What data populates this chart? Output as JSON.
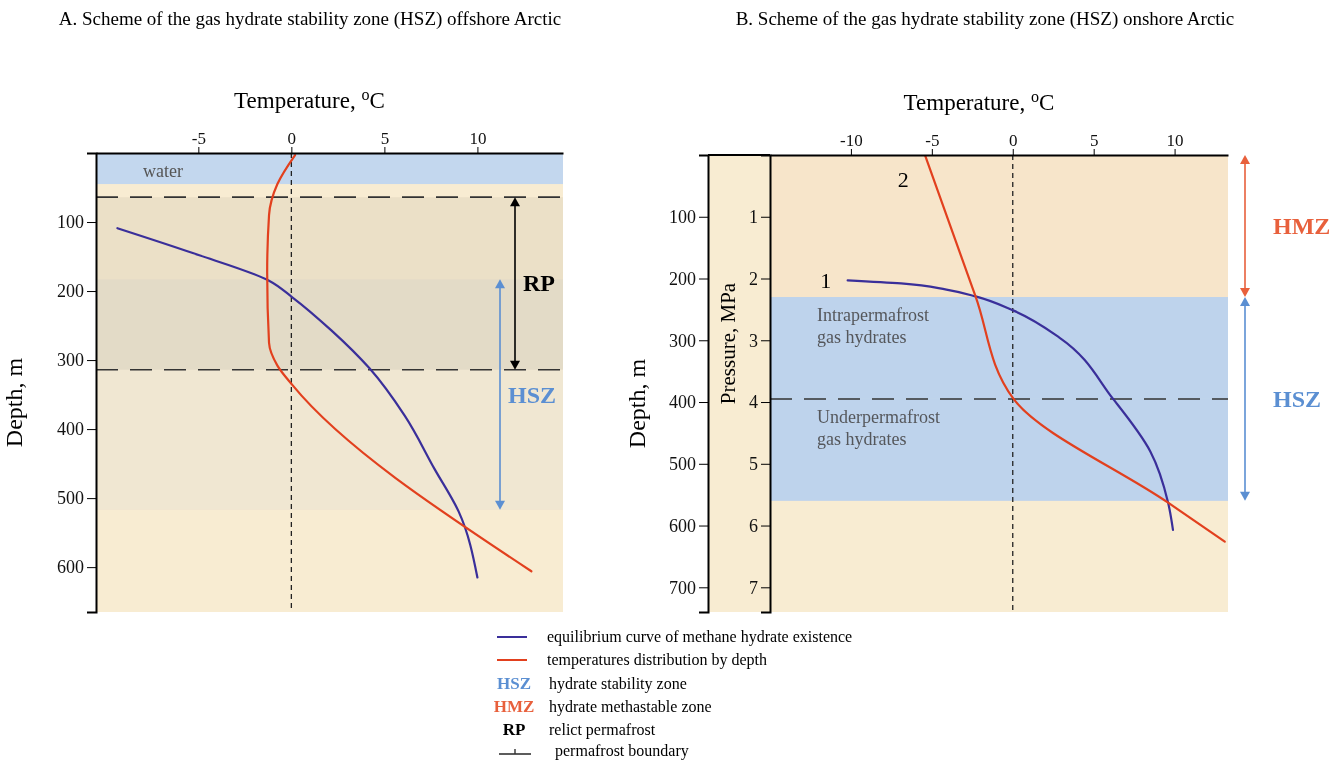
{
  "chart_data": [
    {
      "type": "line",
      "title": "A. Scheme of the gas hydrate stability zone (HSZ) offshore Arctic",
      "xlabel": "Temperature, $^{o}$C",
      "ylabel": "Depth, m",
      "xlim": [
        -10.5,
        14.6
      ],
      "xticks": [
        -5,
        0,
        5,
        10
      ],
      "ylim": [
        665,
        0
      ],
      "yticks": [
        100,
        200,
        300,
        400,
        500,
        600
      ],
      "series": [
        {
          "name": "equilibrium curve of methane hydrate existence",
          "color": "#3a2f9a",
          "x": [
            -9.35,
            -5.3,
            -1.2,
            0.05,
            2.15,
            4.2,
            6.1,
            7.7,
            9.0,
            10.0
          ],
          "values": [
            109,
            145,
            185,
            209,
            257,
            312,
            381,
            458,
            520,
            615
          ]
        },
        {
          "name": "temperatures distribution by depth",
          "color": "#e2401e",
          "x": [
            0.2,
            -0.75,
            -1.2,
            -1.3,
            -1.2,
            -0.75,
            0.05,
            12.9
          ],
          "values": [
            3,
            45,
            90,
            173,
            275,
            308,
            336,
            606
          ]
        }
      ],
      "bands": [
        {
          "axis": "y",
          "from": 0,
          "to": 45,
          "label": "water"
        },
        {
          "axis": "y",
          "from": 183,
          "to": 517,
          "label": "HSZ",
          "color": "#5b8fd2"
        },
        {
          "axis": "y",
          "from": 64,
          "to": 314,
          "label": "RP",
          "color": "#000000"
        }
      ],
      "ref_lines": [
        {
          "axis": "y",
          "value": 64,
          "line_style": "dashed",
          "label": "permafrost boundary"
        },
        {
          "axis": "y",
          "value": 314,
          "line_style": "dashed"
        },
        {
          "axis": "x",
          "value": 0,
          "line_style": "dashed"
        }
      ],
      "legend": "bottom",
      "annotations": [
        "HSZ hydrate stability zone",
        "HMZ hydrate methastable zone",
        "RP relict permafrost"
      ]
    },
    {
      "type": "line",
      "title": "B. Scheme of the gas hydrate stability zone (HSZ) onshore Arctic",
      "xlabel": "Temperature, $^{o}$C",
      "ylabel": "Depth, m",
      "y2label": "Pressure, MPa",
      "xlim": [
        -15,
        13.3
      ],
      "xticks": [
        -10,
        -5,
        0,
        5,
        10
      ],
      "ylim": [
        740,
        0
      ],
      "yticks": [
        100,
        200,
        300,
        400,
        500,
        600,
        700
      ],
      "y2lim": [
        7.4,
        0
      ],
      "y2ticks": [
        1,
        2,
        3,
        4,
        5,
        6,
        7
      ],
      "series": [
        {
          "name": "1",
          "color": "#3a2f9a",
          "x": [
            -10.2,
            -6.9,
            -4.1,
            -2.3,
            0.05,
            2.9,
            6.2,
            8.5,
            9.6,
            9.9
          ],
          "values": [
            203,
            208,
            218,
            229,
            252,
            296,
            395,
            480,
            563,
            607
          ]
        },
        {
          "name": "2",
          "color": "#e2401e",
          "x": [
            -5.4,
            -2.3,
            0.05,
            9.6,
            13.1
          ],
          "values": [
            2,
            229,
            395,
            563,
            626
          ]
        }
      ],
      "bands": [
        {
          "axis": "y",
          "from": 230,
          "to": 395,
          "label": "Intrapermafrost gas hydrates"
        },
        {
          "axis": "y",
          "from": 395,
          "to": 560,
          "label": "Underpermafrost gas hydrates"
        },
        {
          "axis": "y",
          "from": 0,
          "to": 230,
          "label": "HMZ",
          "color": "#e8603c"
        },
        {
          "axis": "y",
          "from": 230,
          "to": 560,
          "label": "HSZ",
          "color": "#5b8fd2"
        }
      ],
      "ref_lines": [
        {
          "axis": "y",
          "value": 395,
          "line_style": "dashed"
        },
        {
          "axis": "x",
          "value": 0,
          "line_style": "dashed"
        }
      ]
    }
  ]
}
